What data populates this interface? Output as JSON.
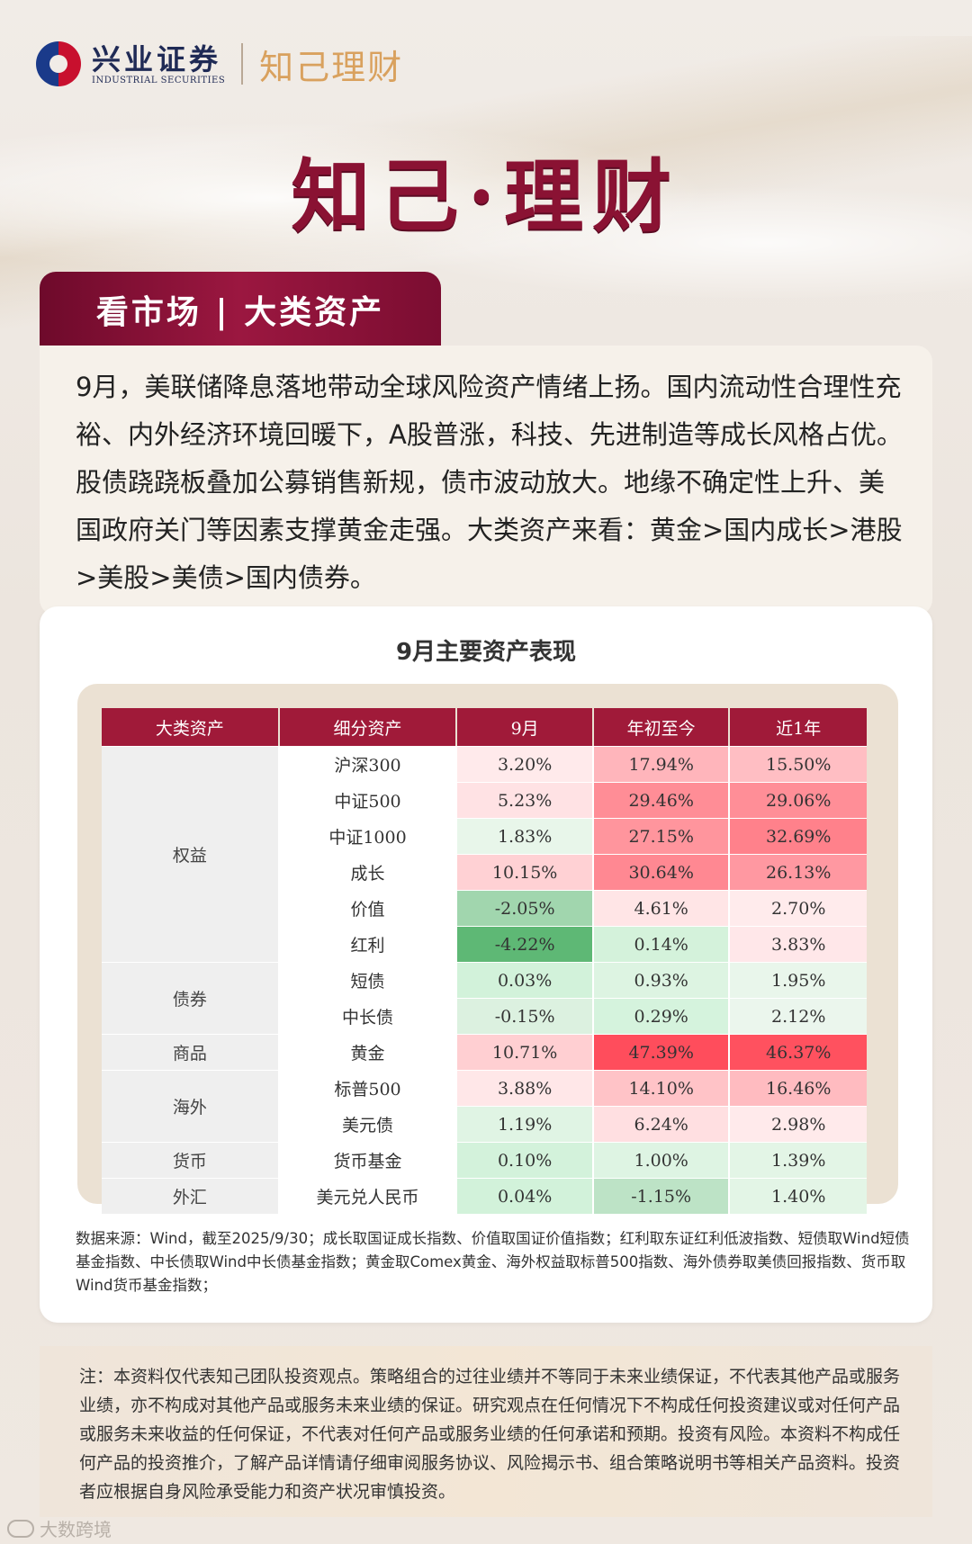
{
  "header": {
    "brand_cn": "兴业证券",
    "brand_en": "INDUSTRIAL SECURITIES",
    "sub_brand": "知己理财"
  },
  "hero_title": "知己·理财",
  "banner": "看市场 | 大类资产",
  "intro": "9月，美联储降息落地带动全球风险资产情绪上扬。国内流动性合理性充裕、内外经济环境回暖下，A股普涨，科技、先进制造等成长风格占优。股债跷跷板叠加公募销售新规，债市波动放大。地缘不确定性上升、美国政府关门等因素支撑黄金走强。大类资产来看：黄金>国内成长>港股>美股>美债>国内债券。",
  "table": {
    "title": "9月主要资产表现",
    "headers": [
      "大类资产",
      "细分资产",
      "9月",
      "年初至今",
      "近1年"
    ],
    "groups": [
      {
        "category": "权益",
        "rows": [
          {
            "asset": "沪深300",
            "m9": "3.20%",
            "ytd": "17.94%",
            "y1": "15.50%"
          },
          {
            "asset": "中证500",
            "m9": "5.23%",
            "ytd": "29.46%",
            "y1": "29.06%"
          },
          {
            "asset": "中证1000",
            "m9": "1.83%",
            "ytd": "27.15%",
            "y1": "32.69%"
          },
          {
            "asset": "成长",
            "m9": "10.15%",
            "ytd": "30.64%",
            "y1": "26.13%"
          },
          {
            "asset": "价值",
            "m9": "-2.05%",
            "ytd": "4.61%",
            "y1": "2.70%"
          },
          {
            "asset": "红利",
            "m9": "-4.22%",
            "ytd": "0.14%",
            "y1": "3.83%"
          }
        ]
      },
      {
        "category": "债券",
        "rows": [
          {
            "asset": "短债",
            "m9": "0.03%",
            "ytd": "0.93%",
            "y1": "1.95%"
          },
          {
            "asset": "中长债",
            "m9": "-0.15%",
            "ytd": "0.29%",
            "y1": "2.12%"
          }
        ]
      },
      {
        "category": "商品",
        "rows": [
          {
            "asset": "黄金",
            "m9": "10.71%",
            "ytd": "47.39%",
            "y1": "46.37%"
          }
        ]
      },
      {
        "category": "海外",
        "rows": [
          {
            "asset": "标普500",
            "m9": "3.88%",
            "ytd": "14.10%",
            "y1": "16.46%"
          },
          {
            "asset": "美元债",
            "m9": "1.19%",
            "ytd": "6.24%",
            "y1": "2.98%"
          }
        ]
      },
      {
        "category": "货币",
        "rows": [
          {
            "asset": "货币基金",
            "m9": "0.10%",
            "ytd": "1.00%",
            "y1": "1.39%"
          }
        ]
      },
      {
        "category": "外汇",
        "rows": [
          {
            "asset": "美元兑人民币",
            "m9": "0.04%",
            "ytd": "-1.15%",
            "y1": "1.40%"
          }
        ]
      }
    ]
  },
  "footnote": "数据来源：Wind，截至2025/9/30；成长取国证成长指数、价值取国证价值指数；红利取东证红利低波指数、短债取Wind短债基金指数、中长债取Wind中长债基金指数；黄金取Comex黄金、海外权益取标普500指数、海外债券取美债回报指数、货币取Wind货币基金指数；",
  "disclaimer": "注：本资料仅代表知己团队投资观点。策略组合的过往业绩并不等同于未来业绩保证，不代表其他产品或服务业绩，亦不构成对其他产品或服务未来业绩的保证。研究观点在任何情况下不构成任何投资建议或对任何产品或服务未来收益的任何保证，不代表对任何产品或服务业绩的任何承诺和预期。投资有风险。本资料不构成任何产品的投资推介，了解产品详情请仔细审阅服务协议、风险揭示书、组合策略说明书等相关产品资料。投资者应根据自身风险承受能力和资产状况审慎投资。",
  "watermark": "大数跨境",
  "colors": {
    "accent": "#a01a39",
    "positive": "#e8475a",
    "negative": "#3aa85a"
  }
}
